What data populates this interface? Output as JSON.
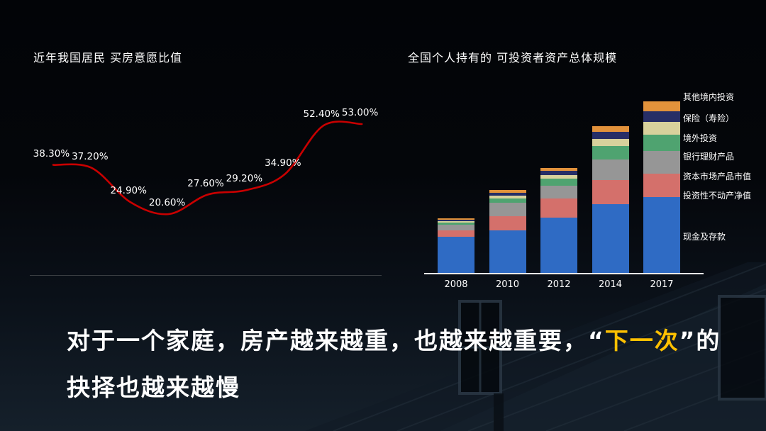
{
  "left_chart": {
    "title": "近年我国居民 买房意愿比值"
  },
  "right_chart": {
    "title": "全国个人持有的 可投资者资产总体规模"
  },
  "caption": {
    "line1_pre": "对于一个家庭，房产越来越重，也越来越重要，",
    "quote_open": "“",
    "highlight": "下一次",
    "quote_close": "”",
    "line1_post": "的",
    "line2": "抉择也越来越慢"
  },
  "colors": {
    "line": "#c90000",
    "highlight": "#ffc000",
    "axis": "#e8e8e8"
  },
  "chart_data": [
    {
      "type": "line",
      "title": "近年我国居民 买房意愿比值",
      "xlabel": "",
      "ylabel": "",
      "grid": false,
      "axes_visible": false,
      "values": [
        38.3,
        37.2,
        24.9,
        20.6,
        27.6,
        29.2,
        34.9,
        52.4,
        53.0
      ],
      "labels": [
        "38.30%",
        "37.20%",
        "24.90%",
        "20.60%",
        "27.60%",
        "29.20%",
        "34.90%",
        "52.40%",
        "53.00%"
      ],
      "line_color": "#c90000",
      "label_color": "#ffffff"
    },
    {
      "type": "bar",
      "stacked": true,
      "title": "全国个人持有的 可投资者资产总体规模",
      "xlabel": "",
      "ylabel": "",
      "grid": false,
      "legend_position": "right",
      "ylim": [
        0,
        130
      ],
      "unit": "relative (no axis scale shown)",
      "categories": [
        "2008",
        "2010",
        "2012",
        "2014",
        "2017"
      ],
      "series": [
        {
          "name": "现金及存款",
          "color": "#2f6bc4",
          "values": [
            26,
            31,
            40,
            50,
            55
          ]
        },
        {
          "name": "投资性不动产净值",
          "color": "#d4706b",
          "values": [
            5,
            10,
            14,
            17,
            17
          ]
        },
        {
          "name": "资本市场产品市值",
          "color": "#969696",
          "values": [
            4,
            10,
            9,
            15,
            16
          ]
        },
        {
          "name": "银行理财产品",
          "color": "#4fa370",
          "values": [
            1.5,
            3,
            5,
            10,
            12
          ]
        },
        {
          "name": "境外投资",
          "color": "#d8d19c",
          "values": [
            1,
            2,
            3,
            5,
            9
          ]
        },
        {
          "name": "保险（寿险）",
          "color": "#272e66",
          "values": [
            1,
            2,
            3,
            5,
            8
          ]
        },
        {
          "name": "其他境内投资",
          "color": "#e2923b",
          "values": [
            1,
            2,
            2,
            4,
            7
          ]
        }
      ]
    }
  ]
}
